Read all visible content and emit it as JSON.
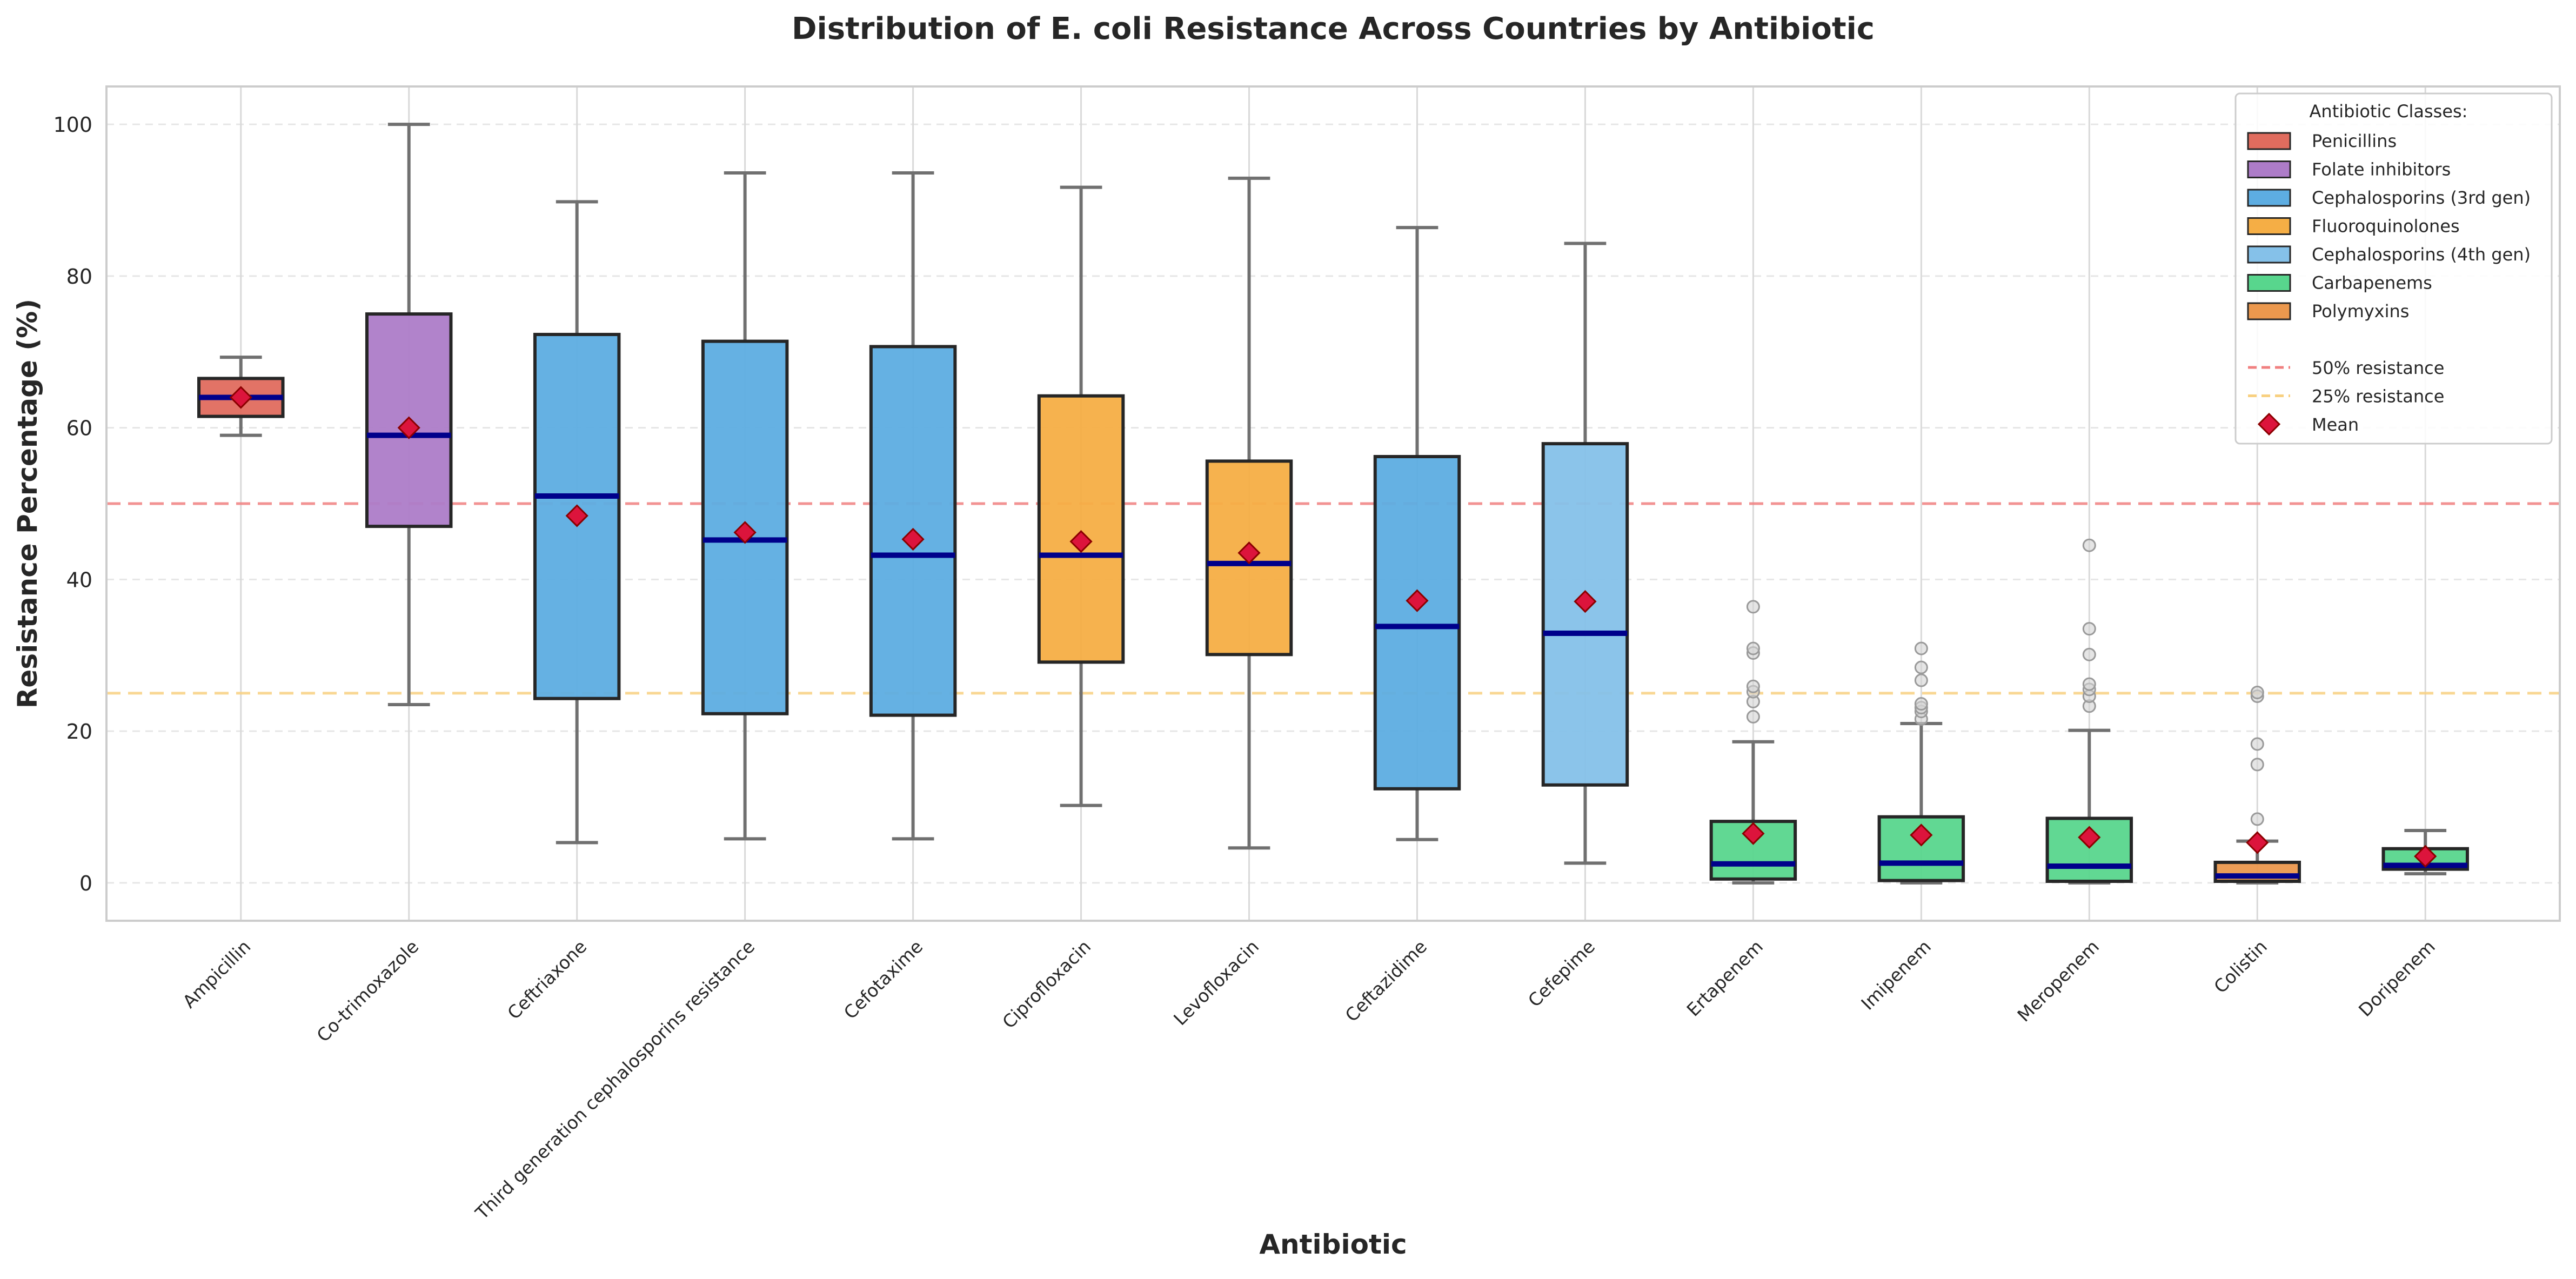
{
  "chart_data": {
    "type": "box",
    "title": "Distribution of E. coli Resistance Across Countries by Antibiotic",
    "xlabel": "Antibiotic",
    "ylabel": "Resistance Percentage (%)",
    "ylim": [
      -5,
      105
    ],
    "yticks": [
      0,
      20,
      40,
      60,
      80,
      100
    ],
    "grid": true,
    "legend_position": "top-right",
    "legend_title": "Antibiotic Classes:",
    "classes": [
      {
        "name": "Penicillins",
        "color": "#e06c5e"
      },
      {
        "name": "Folate inhibitors",
        "color": "#ad7cc8"
      },
      {
        "name": "Cephalosporins (3rd gen)",
        "color": "#5dade2"
      },
      {
        "name": "Fluoroquinolones",
        "color": "#f5ae45"
      },
      {
        "name": "Cephalosporins (4th gen)",
        "color": "#85c1e9"
      },
      {
        "name": "Carbapenems",
        "color": "#58d68d"
      },
      {
        "name": "Polymyxins",
        "color": "#eb984e"
      }
    ],
    "reference_lines": [
      {
        "label": "50% resistance",
        "value": 50,
        "color": "#f08080"
      },
      {
        "label": "25% resistance",
        "value": 25,
        "color": "#f8d080"
      }
    ],
    "mean_label": "Mean",
    "mean_color": "#dc143c",
    "median_color": "#00008b",
    "categories": [
      "Ampicillin",
      "Co-trimoxazole",
      "Ceftriaxone",
      "Third generation cephalosporins resistance",
      "Cefotaxime",
      "Ciprofloxacin",
      "Levofloxacin",
      "Ceftazidime",
      "Cefepime",
      "Ertapenem",
      "Imipenem",
      "Meropenem",
      "Colistin",
      "Doripenem"
    ],
    "boxes": [
      {
        "category": "Ampicillin",
        "class": 0,
        "whisker_low": 59,
        "q1": 61.5,
        "median": 64,
        "q3": 66.5,
        "whisker_high": 69.3,
        "mean": 64,
        "outliers": []
      },
      {
        "category": "Co-trimoxazole",
        "class": 1,
        "whisker_low": 23.5,
        "q1": 47,
        "median": 59,
        "q3": 75,
        "whisker_high": 100,
        "mean": 60,
        "outliers": []
      },
      {
        "category": "Ceftriaxone",
        "class": 2,
        "whisker_low": 5.3,
        "q1": 24.3,
        "median": 51,
        "q3": 72.3,
        "whisker_high": 89.8,
        "mean": 48.4,
        "outliers": []
      },
      {
        "category": "Third generation cephalosporins resistance",
        "class": 2,
        "whisker_low": 5.8,
        "q1": 22.3,
        "median": 45.2,
        "q3": 71.4,
        "whisker_high": 93.6,
        "mean": 46.2,
        "outliers": []
      },
      {
        "category": "Cefotaxime",
        "class": 2,
        "whisker_low": 5.8,
        "q1": 22.1,
        "median": 43.2,
        "q3": 70.7,
        "whisker_high": 93.6,
        "mean": 45.3,
        "outliers": []
      },
      {
        "category": "Ciprofloxacin",
        "class": 3,
        "whisker_low": 10.2,
        "q1": 29.1,
        "median": 43.2,
        "q3": 64.2,
        "whisker_high": 91.7,
        "mean": 45,
        "outliers": []
      },
      {
        "category": "Levofloxacin",
        "class": 3,
        "whisker_low": 4.6,
        "q1": 30.1,
        "median": 42.1,
        "q3": 55.6,
        "whisker_high": 92.9,
        "mean": 43.5,
        "outliers": []
      },
      {
        "category": "Ceftazidime",
        "class": 2,
        "whisker_low": 5.7,
        "q1": 12.4,
        "median": 33.8,
        "q3": 56.2,
        "whisker_high": 86.4,
        "mean": 37.2,
        "outliers": []
      },
      {
        "category": "Cefepime",
        "class": 4,
        "whisker_low": 2.6,
        "q1": 12.9,
        "median": 32.9,
        "q3": 57.9,
        "whisker_high": 84.3,
        "mean": 37.1,
        "outliers": []
      },
      {
        "category": "Ertapenem",
        "class": 5,
        "whisker_low": 0,
        "q1": 0.5,
        "median": 2.5,
        "q3": 8.1,
        "whisker_high": 18.6,
        "mean": 6.5,
        "outliers": [
          21.9,
          23.9,
          25.2,
          25.9,
          30.3,
          30.9,
          36.4
        ]
      },
      {
        "category": "Imipenem",
        "class": 5,
        "whisker_low": 0,
        "q1": 0.3,
        "median": 2.6,
        "q3": 8.7,
        "whisker_high": 21,
        "mean": 6.3,
        "outliers": [
          21.6,
          22.6,
          23.1,
          23.6,
          26.7,
          28.4,
          30.9
        ]
      },
      {
        "category": "Meropenem",
        "class": 5,
        "whisker_low": 0,
        "q1": 0.2,
        "median": 2.2,
        "q3": 8.5,
        "whisker_high": 20.1,
        "mean": 6,
        "outliers": [
          23.3,
          24.6,
          25.5,
          26.2,
          30.1,
          33.5,
          44.5
        ]
      },
      {
        "category": "Colistin",
        "class": 6,
        "whisker_low": 0,
        "q1": 0.2,
        "median": 0.9,
        "q3": 2.7,
        "whisker_high": 5.5,
        "mean": 5.3,
        "outliers": [
          8.4,
          15.6,
          18.3,
          24.6,
          25.1
        ]
      },
      {
        "category": "Doripenem",
        "class": 5,
        "whisker_low": 1.2,
        "q1": 1.8,
        "median": 2.3,
        "q3": 4.5,
        "whisker_high": 6.9,
        "mean": 3.5,
        "outliers": []
      }
    ]
  }
}
